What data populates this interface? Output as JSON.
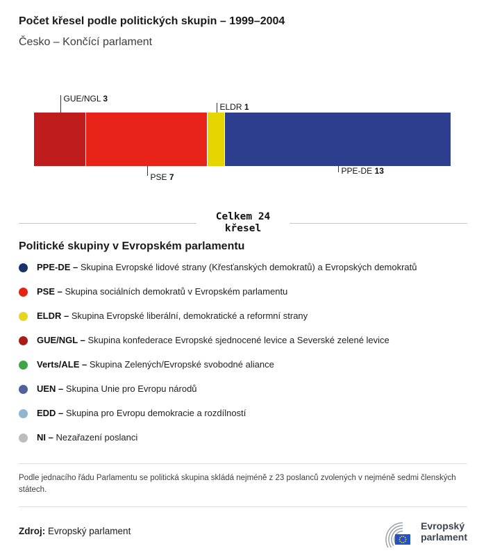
{
  "header": {
    "title": "Počet křesel podle politických skupin – 1999–2004",
    "subtitle": "Česko – Končící parlament"
  },
  "chart_data": {
    "type": "bar",
    "orientation": "horizontal-stacked",
    "title": "Počet křesel podle politických skupin – 1999–2004",
    "subtitle": "Česko – Končící parlament",
    "total": 24,
    "total_label_line1": "Celkem 24",
    "total_label_line2": "křesel",
    "segments": [
      {
        "name": "GUE/NGL",
        "seats": 3,
        "color": "#bf1d1d",
        "label_side": "above",
        "label_tier": 2
      },
      {
        "name": "PSE",
        "seats": 7,
        "color": "#e8231a",
        "label_side": "below",
        "label_tier": 2
      },
      {
        "name": "ELDR",
        "seats": 1,
        "color": "#e7d500",
        "label_side": "above",
        "label_tier": 1
      },
      {
        "name": "PPE-DE",
        "seats": 13,
        "color": "#2d3e8f",
        "label_side": "below",
        "label_tier": 1
      }
    ]
  },
  "legend": {
    "heading": "Politické skupiny v Evropském parlamentu",
    "items": [
      {
        "abbr": "PPE-DE –",
        "desc": "Skupina Evropské lidové strany (Křesťanských demokratů) a Evropských demokratů",
        "color": "#1a316b"
      },
      {
        "abbr": "PSE –",
        "desc": "Skupina sociálních demokratů v Evropském parlamentu",
        "color": "#e42313"
      },
      {
        "abbr": "ELDR –",
        "desc": "Skupina Evropské liberální, demokratické a reformní strany",
        "color": "#e8d51e"
      },
      {
        "abbr": "GUE/NGL –",
        "desc": "Skupina konfederace Evropské sjednocené levice a Severské zelené levice",
        "color": "#aa1c14"
      },
      {
        "abbr": "Verts/ALE –",
        "desc": "Skupina Zelených/Evropské svobodné aliance",
        "color": "#3da644"
      },
      {
        "abbr": "UEN –",
        "desc": "Skupina Unie pro Evropu národů",
        "color": "#51619b"
      },
      {
        "abbr": "EDD –",
        "desc": "Skupina pro Evropu demokracie a rozdílností",
        "color": "#8fb5d2"
      },
      {
        "abbr": "NI –",
        "desc": "Nezařazení poslanci",
        "color": "#bdbdbd"
      }
    ]
  },
  "note": "Podle jednacího řádu Parlamentu se politická skupina skládá nejméně z 23 poslanců zvolených v nejméně sedmi členských státech.",
  "source": {
    "label": "Zdroj:",
    "value": "Evropský parlament"
  },
  "logo": {
    "line1": "Evropský",
    "line2": "parlament"
  }
}
